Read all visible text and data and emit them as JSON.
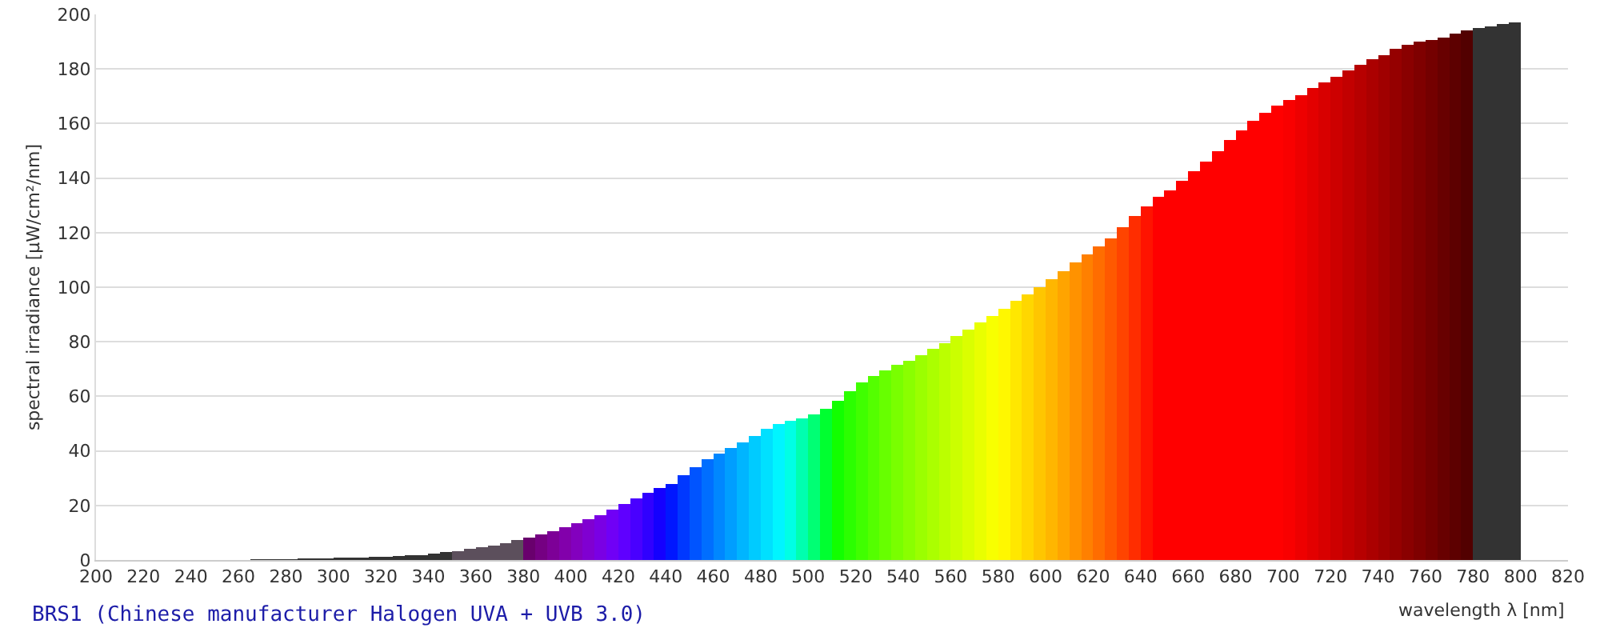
{
  "chart_data": {
    "type": "bar",
    "xlabel": "wavelength λ [nm]",
    "ylabel": "spectral irradiance [µW/cm²/nm]",
    "annotations": [
      "BRS1 (Chinese manufacturer Halogen UVA + UVB 3.0)"
    ],
    "x": [
      267.5,
      272.5,
      277.5,
      282.5,
      287.5,
      292.5,
      297.5,
      302.5,
      307.5,
      312.5,
      317.5,
      322.5,
      327.5,
      332.5,
      337.5,
      342.5,
      347.5,
      352.5,
      357.5,
      362.5,
      367.5,
      372.5,
      377.5,
      382.5,
      387.5,
      392.5,
      397.5,
      402.5,
      407.5,
      412.5,
      417.5,
      422.5,
      427.5,
      432.5,
      437.5,
      442.5,
      447.5,
      452.5,
      457.5,
      462.5,
      467.5,
      472.5,
      477.5,
      482.5,
      487.5,
      492.5,
      497.5,
      502.5,
      507.5,
      512.5,
      517.5,
      522.5,
      527.5,
      532.5,
      537.5,
      542.5,
      547.5,
      552.5,
      557.5,
      562.5,
      567.5,
      572.5,
      577.5,
      582.5,
      587.5,
      592.5,
      597.5,
      602.5,
      607.5,
      612.5,
      617.5,
      622.5,
      627.5,
      632.5,
      637.5,
      642.5,
      647.5,
      652.5,
      657.5,
      662.5,
      667.5,
      672.5,
      677.5,
      682.5,
      687.5,
      692.5,
      697.5,
      702.5,
      707.5,
      712.5,
      717.5,
      722.5,
      727.5,
      732.5,
      737.5,
      742.5,
      747.5,
      752.5,
      757.5,
      762.5,
      767.5,
      772.5,
      777.5,
      782.5,
      787.5,
      792.5,
      797.5
    ],
    "values": [
      0.2,
      0.3,
      0.4,
      0.4,
      0.5,
      0.6,
      0.7,
      0.8,
      0.9,
      1.0,
      1.1,
      1.3,
      1.5,
      1.7,
      1.9,
      2.3,
      2.8,
      3.3,
      4.0,
      4.7,
      5.4,
      6.3,
      7.2,
      8.1,
      9.3,
      10.7,
      12.1,
      13.6,
      15.0,
      16.5,
      18.5,
      20.5,
      22.5,
      24.5,
      26.5,
      28,
      31,
      34,
      37,
      39,
      41,
      43,
      45.5,
      48,
      50,
      51,
      52,
      53.5,
      55.5,
      58.5,
      62,
      65,
      67.5,
      69.5,
      71.5,
      73,
      75,
      77.5,
      79.5,
      82,
      84.5,
      87,
      89.5,
      92,
      95,
      97.5,
      100,
      103,
      106,
      109,
      112,
      115,
      118,
      122,
      126,
      129.5,
      133,
      135.5,
      139,
      142.5,
      146,
      150,
      154,
      157.5,
      161,
      164,
      166.5,
      168.5,
      170.5,
      173,
      175,
      177,
      179.5,
      181.5,
      183.5,
      185,
      187.5,
      189,
      190,
      190.5,
      191.5,
      193,
      194,
      195,
      195.5,
      196.5,
      197
    ],
    "colors": [
      "#333333",
      "#333333",
      "#333333",
      "#333333",
      "#333333",
      "#333333",
      "#333333",
      "#333333",
      "#333333",
      "#333333",
      "#333333",
      "#333333",
      "#333333",
      "#333333",
      "#333333",
      "#333333",
      "#333333",
      "#5c4f5c",
      "#5c4f5c",
      "#5c4f5c",
      "#5c4f5c",
      "#5c4f5c",
      "#5c4f5c",
      "#69006d",
      "#750082",
      "#7d0097",
      "#8200ab",
      "#8300be",
      "#8000d1",
      "#7a00e4",
      "#7000f6",
      "#5f00ff",
      "#4900ff",
      "#3000ff",
      "#1400ff",
      "#0017ff",
      "#0038ff",
      "#0054ff",
      "#006eff",
      "#0087ff",
      "#009eff",
      "#00b5ff",
      "#00cbff",
      "#00e0ff",
      "#00f5ff",
      "#00ffe5",
      "#00ffaf",
      "#00ff74",
      "#00ff30",
      "#12ff00",
      "#2bff00",
      "#40ff00",
      "#54ff00",
      "#67ff00",
      "#79ff00",
      "#8aff00",
      "#9bff00",
      "#abff00",
      "#bbff00",
      "#cbff00",
      "#daff00",
      "#e9ff00",
      "#f8ff00",
      "#fff700",
      "#ffe700",
      "#ffd700",
      "#ffc600",
      "#ffb600",
      "#ffa400",
      "#ff9200",
      "#ff8000",
      "#ff6d00",
      "#ff5900",
      "#ff4400",
      "#ff2d00",
      "#ff1300",
      "#ff0000",
      "#ff0000",
      "#ff0000",
      "#ff0000",
      "#ff0000",
      "#ff0000",
      "#ff0000",
      "#ff0000",
      "#ff0000",
      "#ff0000",
      "#ff0000",
      "#f90000",
      "#ee0000",
      "#e30000",
      "#d80000",
      "#cd0000",
      "#c20000",
      "#b70000",
      "#ab0000",
      "#a00000",
      "#950000",
      "#8a0000",
      "#7f0000",
      "#740000",
      "#680000",
      "#5d0000",
      "#520000",
      "#333333",
      "#333333",
      "#333333",
      "#333333"
    ],
    "xlim": [
      200,
      820
    ],
    "xticks": [
      200,
      220,
      240,
      260,
      280,
      300,
      320,
      340,
      360,
      380,
      400,
      420,
      440,
      460,
      480,
      500,
      520,
      540,
      560,
      580,
      600,
      620,
      640,
      660,
      680,
      700,
      720,
      740,
      760,
      780,
      800,
      820
    ],
    "ylim": [
      0,
      200
    ],
    "yticks": [
      0,
      20,
      40,
      60,
      80,
      100,
      120,
      140,
      160,
      180,
      200
    ],
    "grid": "y"
  }
}
